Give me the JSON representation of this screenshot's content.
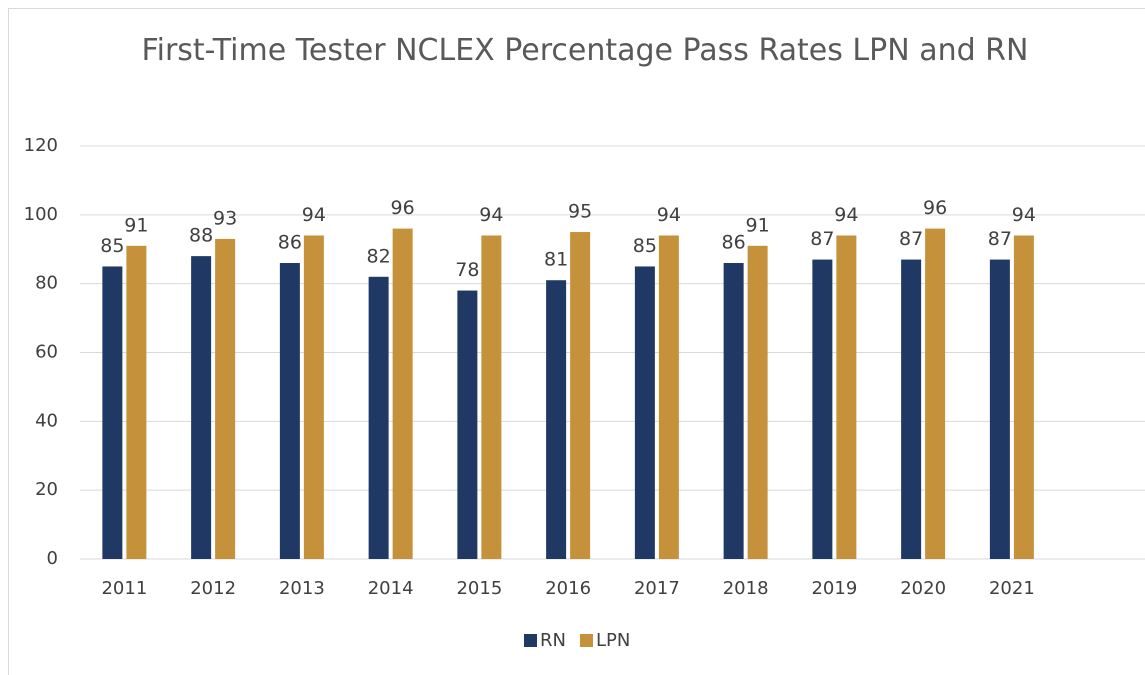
{
  "chart_data": {
    "type": "bar",
    "title": "First-Time Tester NCLEX Percentage Pass Rates LPN and RN",
    "categories": [
      "2011",
      "2012",
      "2013",
      "2014",
      "2015",
      "2016",
      "2017",
      "2018",
      "2019",
      "2020",
      "2021",
      null
    ],
    "series": [
      {
        "name": "RN",
        "color": "#203864",
        "values": [
          85,
          88,
          86,
          82,
          78,
          81,
          85,
          86,
          87,
          87,
          87,
          null
        ]
      },
      {
        "name": "LPN",
        "color": "#c5913a",
        "values": [
          91,
          93,
          94,
          96,
          94,
          95,
          94,
          91,
          94,
          96,
          94,
          null
        ]
      }
    ],
    "ylim": [
      0,
      120
    ],
    "yticks": [
      0,
      20,
      40,
      60,
      80,
      100,
      120
    ],
    "grid": true,
    "legend": "bottom"
  }
}
